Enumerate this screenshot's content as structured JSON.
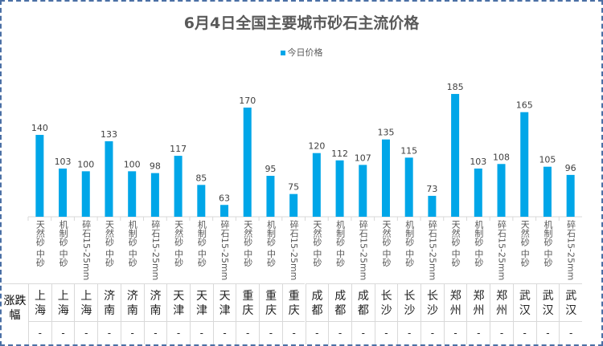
{
  "chart_data": {
    "type": "bar",
    "title": "6月4日全国主要城市砂石主流价格",
    "legend": {
      "entries": [
        "今日价格"
      ],
      "placement": "top"
    },
    "series": [
      {
        "name": "今日价格",
        "color": "#00a6e8",
        "values": [
          140,
          103,
          100,
          133,
          100,
          98,
          117,
          85,
          63,
          170,
          95,
          75,
          120,
          112,
          107,
          135,
          115,
          73,
          185,
          103,
          108,
          165,
          105,
          96
        ]
      }
    ],
    "categories": [
      "天然砂 中砂",
      "机制砂 中砂",
      "碎石15-25mm",
      "天然砂 中砂",
      "机制砂 中砂",
      "碎石15-25mm",
      "天然砂 中砂",
      "机制砂 中砂",
      "碎石15-25mm",
      "天然砂 中砂",
      "机制砂 中砂",
      "碎石15-25mm",
      "天然砂 中砂",
      "机制砂 中砂",
      "碎石15-25mm",
      "天然砂 中砂",
      "机制砂 中砂",
      "碎石15-25mm",
      "天然砂 中砂",
      "机制砂 中砂",
      "碎石15-25mm",
      "天然砂 中砂",
      "机制砂 中砂",
      "碎石15-25mm"
    ],
    "cities": [
      "上海",
      "上海",
      "上海",
      "济南",
      "济南",
      "济南",
      "天津",
      "天津",
      "天津",
      "重庆",
      "重庆",
      "重庆",
      "成都",
      "成都",
      "成都",
      "长沙",
      "长沙",
      "长沙",
      "郑州",
      "郑州",
      "郑州",
      "武汉",
      "武汉",
      "武汉"
    ],
    "change_label": "涨跌幅",
    "changes": [
      "-",
      "-",
      "-",
      "-",
      "-",
      "-",
      "-",
      "-",
      "-",
      "-",
      "-",
      "-",
      "-",
      "-",
      "-",
      "-",
      "-",
      "-",
      "-",
      "-",
      "-",
      "-",
      "-",
      "-"
    ],
    "ylim": [
      50,
      200
    ],
    "data_labels": true,
    "grid": false
  }
}
